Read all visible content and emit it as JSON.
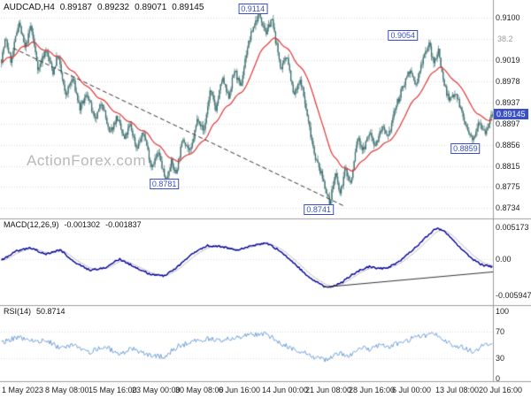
{
  "header": {
    "symbol": "AUDCAD,H4",
    "open": "0.89187",
    "high": "0.89232",
    "low": "0.89071",
    "close": "0.89145"
  },
  "watermark": "ActionForex.com",
  "colors": {
    "candle": "#3f7070",
    "ma": "#e23333",
    "macd": "#00009a",
    "signal": "#b8b8b8",
    "rsi": "#6fa0d8",
    "grid": "#d9d9d9",
    "level": "#cccccc",
    "separator": "#9e9e9e",
    "annotation": "#3a50c8",
    "price_tag_bg": "#3a50c8",
    "trendline": "#333333",
    "fib": "#9a9a9a"
  },
  "chart_data": {
    "type": "candlestick",
    "symbol": "AUDCAD",
    "timeframe": "H4",
    "price_panel": {
      "y_axis_labels": [
        "0.9100",
        "0.9019",
        "0.8978",
        "0.8937",
        "0.8897",
        "0.8856",
        "0.8815",
        "0.8775",
        "0.8734"
      ],
      "current_price": "0.89145",
      "current_price_value": 0.89145,
      "fib_label": {
        "text": "38.2",
        "price": 0.9059
      },
      "annotations": [
        {
          "text": "0.9114",
          "x": 0.512,
          "price": 0.9114,
          "placement": "above"
        },
        {
          "text": "0.9054",
          "x": 0.817,
          "price": 0.9054,
          "placement": "above"
        },
        {
          "text": "0.8859",
          "x": 0.944,
          "price": 0.8859,
          "placement": "below"
        },
        {
          "text": "0.8781",
          "x": 0.332,
          "price": 0.8781,
          "placement": "center"
        },
        {
          "text": "0.8741",
          "x": 0.646,
          "price": 0.8741,
          "placement": "below"
        }
      ],
      "trendline": {
        "from": [
          0.025,
          0.9042
        ],
        "to": [
          0.698,
          0.8738
        ]
      },
      "price_path": [
        [
          0.0,
          0.902
        ],
        [
          0.008,
          0.906
        ],
        [
          0.02,
          0.9015
        ],
        [
          0.035,
          0.9095
        ],
        [
          0.048,
          0.904
        ],
        [
          0.06,
          0.9085
        ],
        [
          0.075,
          0.9
        ],
        [
          0.09,
          0.904
        ],
        [
          0.105,
          0.8995
        ],
        [
          0.115,
          0.903
        ],
        [
          0.13,
          0.895
        ],
        [
          0.145,
          0.8985
        ],
        [
          0.16,
          0.8925
        ],
        [
          0.175,
          0.8955
        ],
        [
          0.19,
          0.89
        ],
        [
          0.205,
          0.894
        ],
        [
          0.22,
          0.8875
        ],
        [
          0.235,
          0.891
        ],
        [
          0.25,
          0.8865
        ],
        [
          0.262,
          0.8895
        ],
        [
          0.275,
          0.885
        ],
        [
          0.29,
          0.888
        ],
        [
          0.305,
          0.8815
        ],
        [
          0.32,
          0.884
        ],
        [
          0.335,
          0.8783
        ],
        [
          0.345,
          0.8825
        ],
        [
          0.355,
          0.88
        ],
        [
          0.37,
          0.887
        ],
        [
          0.385,
          0.884
        ],
        [
          0.4,
          0.891
        ],
        [
          0.412,
          0.888
        ],
        [
          0.425,
          0.896
        ],
        [
          0.437,
          0.8925
        ],
        [
          0.45,
          0.8985
        ],
        [
          0.462,
          0.8945
        ],
        [
          0.475,
          0.9
        ],
        [
          0.487,
          0.8965
        ],
        [
          0.5,
          0.904
        ],
        [
          0.512,
          0.908
        ],
        [
          0.525,
          0.911
        ],
        [
          0.54,
          0.907
        ],
        [
          0.55,
          0.91
        ],
        [
          0.558,
          0.906
        ],
        [
          0.57,
          0.9
        ],
        [
          0.582,
          0.903
        ],
        [
          0.595,
          0.895
        ],
        [
          0.61,
          0.898
        ],
        [
          0.625,
          0.89
        ],
        [
          0.64,
          0.883
        ],
        [
          0.655,
          0.879
        ],
        [
          0.668,
          0.8743
        ],
        [
          0.68,
          0.88
        ],
        [
          0.69,
          0.876
        ],
        [
          0.7,
          0.881
        ],
        [
          0.712,
          0.878
        ],
        [
          0.725,
          0.887
        ],
        [
          0.737,
          0.8845
        ],
        [
          0.75,
          0.888
        ],
        [
          0.762,
          0.8855
        ],
        [
          0.775,
          0.889
        ],
        [
          0.787,
          0.8865
        ],
        [
          0.8,
          0.892
        ],
        [
          0.815,
          0.896
        ],
        [
          0.83,
          0.9
        ],
        [
          0.845,
          0.897
        ],
        [
          0.86,
          0.903
        ],
        [
          0.872,
          0.905
        ],
        [
          0.88,
          0.901
        ],
        [
          0.89,
          0.904
        ],
        [
          0.9,
          0.898
        ],
        [
          0.912,
          0.894
        ],
        [
          0.925,
          0.896
        ],
        [
          0.937,
          0.892
        ],
        [
          0.95,
          0.888
        ],
        [
          0.96,
          0.8862
        ],
        [
          0.972,
          0.8905
        ],
        [
          0.985,
          0.888
        ],
        [
          1.0,
          0.89145
        ]
      ]
    },
    "macd_panel": {
      "label": "MACD(12,26,9)",
      "macd_value": "-0.001302",
      "signal_value": "-0.001837",
      "y_axis_labels": [
        {
          "text": "0.005173",
          "value": 0.005173
        },
        {
          "text": "0.00",
          "value": 0
        },
        {
          "text": "-0.005947",
          "value": -0.005947
        }
      ],
      "trendline": {
        "from": [
          0.655,
          -0.0046
        ],
        "to": [
          1.0,
          -0.0021
        ]
      },
      "path": [
        [
          0.0,
          -0.0002
        ],
        [
          0.03,
          0.0013
        ],
        [
          0.06,
          0.0018
        ],
        [
          0.09,
          0.0008
        ],
        [
          0.12,
          0.0015
        ],
        [
          0.15,
          -0.0006
        ],
        [
          0.18,
          -0.0018
        ],
        [
          0.21,
          -0.0015
        ],
        [
          0.24,
          0.0
        ],
        [
          0.27,
          -0.0012
        ],
        [
          0.3,
          -0.0024
        ],
        [
          0.33,
          -0.0028
        ],
        [
          0.36,
          -0.0012
        ],
        [
          0.39,
          0.001
        ],
        [
          0.42,
          0.0022
        ],
        [
          0.45,
          0.002
        ],
        [
          0.48,
          0.0014
        ],
        [
          0.51,
          0.0022
        ],
        [
          0.54,
          0.0026
        ],
        [
          0.57,
          0.0012
        ],
        [
          0.6,
          -0.001
        ],
        [
          0.63,
          -0.0032
        ],
        [
          0.655,
          -0.0044
        ],
        [
          0.67,
          -0.0046
        ],
        [
          0.69,
          -0.004
        ],
        [
          0.71,
          -0.0028
        ],
        [
          0.73,
          -0.0018
        ],
        [
          0.75,
          -0.0012
        ],
        [
          0.77,
          -0.0016
        ],
        [
          0.79,
          -0.0013
        ],
        [
          0.81,
          -0.0004
        ],
        [
          0.83,
          0.001
        ],
        [
          0.85,
          0.0024
        ],
        [
          0.87,
          0.004
        ],
        [
          0.885,
          0.005
        ],
        [
          0.9,
          0.0047
        ],
        [
          0.92,
          0.0032
        ],
        [
          0.94,
          0.0014
        ],
        [
          0.96,
          0.0
        ],
        [
          0.98,
          -0.001
        ],
        [
          1.0,
          -0.0013
        ]
      ]
    },
    "rsi_panel": {
      "label": "RSI(14)",
      "value": "50.8714",
      "y_axis_labels": [
        {
          "text": "100",
          "value": 100
        },
        {
          "text": "70",
          "value": 70
        },
        {
          "text": "30",
          "value": 30
        },
        {
          "text": "0",
          "value": 0
        }
      ],
      "levels": [
        70,
        30
      ],
      "path": [
        [
          0.0,
          52
        ],
        [
          0.03,
          62
        ],
        [
          0.06,
          55
        ],
        [
          0.09,
          58
        ],
        [
          0.12,
          45
        ],
        [
          0.15,
          50
        ],
        [
          0.18,
          40
        ],
        [
          0.21,
          47
        ],
        [
          0.24,
          38
        ],
        [
          0.27,
          44
        ],
        [
          0.3,
          35
        ],
        [
          0.33,
          32
        ],
        [
          0.36,
          48
        ],
        [
          0.39,
          55
        ],
        [
          0.42,
          60
        ],
        [
          0.45,
          57
        ],
        [
          0.48,
          62
        ],
        [
          0.51,
          65
        ],
        [
          0.54,
          66
        ],
        [
          0.57,
          52
        ],
        [
          0.6,
          42
        ],
        [
          0.63,
          34
        ],
        [
          0.66,
          27
        ],
        [
          0.69,
          38
        ],
        [
          0.71,
          34
        ],
        [
          0.73,
          46
        ],
        [
          0.75,
          44
        ],
        [
          0.77,
          49
        ],
        [
          0.79,
          46
        ],
        [
          0.81,
          54
        ],
        [
          0.83,
          58
        ],
        [
          0.85,
          62
        ],
        [
          0.87,
          65
        ],
        [
          0.885,
          67
        ],
        [
          0.9,
          58
        ],
        [
          0.92,
          50
        ],
        [
          0.94,
          46
        ],
        [
          0.96,
          40
        ],
        [
          0.98,
          48
        ],
        [
          1.0,
          50.87
        ]
      ]
    },
    "x_axis": {
      "labels": [
        "1 May 2023",
        "8 May 08:00",
        "15 May 16:00",
        "23 May 00:00",
        "30 May 08:00",
        "6 Jun 16:00",
        "14 Jun 00:00",
        "21 Jun 08:00",
        "28 Jun 16:00",
        "6 Jul 00:00",
        "13 Jul 08:00",
        "20 Jul 16:00"
      ]
    }
  }
}
